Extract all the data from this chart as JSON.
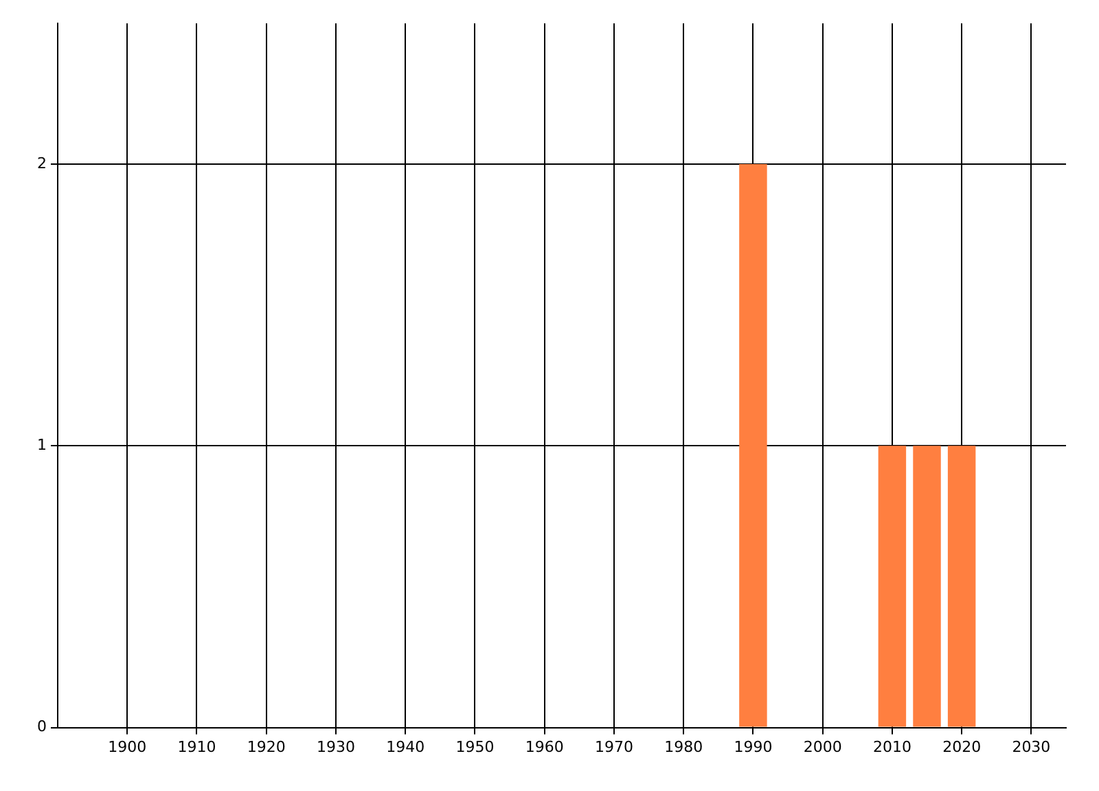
{
  "chart_data": {
    "type": "bar",
    "x": [
      1990,
      2010,
      2015,
      2020
    ],
    "values": [
      2,
      1,
      1,
      1
    ],
    "color": "#ff7f40",
    "xlim": [
      1890,
      2035
    ],
    "xticks": [
      1900,
      1910,
      1920,
      1930,
      1940,
      1950,
      1960,
      1970,
      1980,
      1990,
      2000,
      2010,
      2020,
      2030
    ],
    "ylim": [
      0,
      2.5
    ],
    "yticks": [
      0,
      1,
      2
    ],
    "grid": true,
    "legend": false
  }
}
